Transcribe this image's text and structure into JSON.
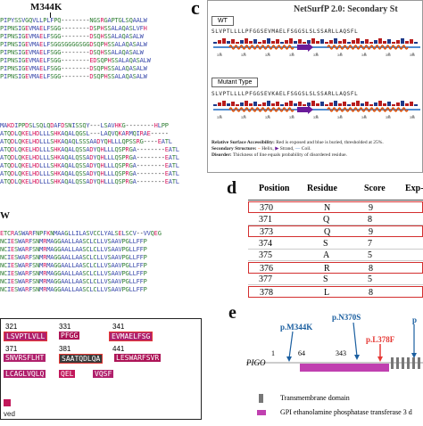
{
  "panel_labels": {
    "c": "c",
    "d": "d",
    "e": "e"
  },
  "panel_a": {
    "mutation_label": "M344K",
    "rows": [
      "PIPYSSVGQVLLPLFPQ--------NGSRGAPTGLSQAALW",
      "PIPNSIGEVMAELFSGG--------DSPHSSALAQASLVFH",
      "PIPNSIGEVMAELFSGG--------DSQHSSALAQASALW",
      "PIPNSIGEVMAELFSGGSGGGGSGGDSQPHSSALAQASALW",
      "PIPNSIGEVMAELFSGG--------DSQHSSALAQASALW",
      "PIPNSIGEVMAELFSGG--------EDSQPHSSALAQASALW",
      "PIPNSIGEVMAELFSGG--------DSQPHSSALAQASALW",
      "PIPNSIGEVMAELFSGG--------DSQPHSSALAQASALW"
    ]
  },
  "panel_b": {
    "rows": [
      "MAKDIPPDSLSQLQDAFDSNISSQY---LSAVHKG--------HLPP",
      "ATQDLQKELHDLLLSHKAQALQGSL---LAQVQKARMQIRAE-----",
      "ATQDLQKELHDLLLSHKAQAQLSSSAADYQHLLLQPSSRG----EATL",
      "ATQDLQKELHDLLLSHKAQALQSSADYQHLLLQSPRGA--------EATL",
      "ATQDLQKELHDLLLSHKAQALQSSADYQHLLLQSPRGA--------EATL",
      "ATQDLQKELHDLLLSHKAQALQSSADYQHLLLQSPRGA--------EATL",
      "ATQDLQKELHDLLLSHKAQALQSSADYQHLLLQSPRGA--------EATL",
      "ATQDLQKELHDLLLSHKAQALQSSADYQHLLLQSPRGA--------EATL"
    ]
  },
  "panel_w": {
    "mutation_label": "W",
    "rows": [
      "ETCRASWARFNPFKNMAAGLLILASVCCLYALSELSCV--VVQEG",
      "NCIESWARFSNMRMAGGAALLAASCLCLLVSAAVPGLLFFP",
      "NCIESWARFSNMRMAGGAALLAASCLCLLVSAAVPGLLFFP",
      "NCIESWARFSNMRMAGGAALLAASCLCLLVSAAVPGLLFFP",
      "NCIESWARFSNMRMAGGAALLAASCLCLLVSAAVPGLLFFP",
      "NCIESWARFSNMRMAGGAALLAASCLCLLVSAAVPGLLFFP",
      "NCIESWARFSNMRMAGGAALLAASCLCLLVSAAVPGLLFFP",
      "NCIESWARFSNMRMAGGAALLAASCLCLLVSAAVPGLLFFP"
    ]
  },
  "panel_f": {
    "numbers_top": [
      "321",
      "331",
      "341"
    ],
    "row1": [
      "LSVPTLVLL",
      "PFGG",
      "EVMAELFSG"
    ],
    "numbers_mid": [
      "371",
      "381",
      "441"
    ],
    "row2": [
      "SNVRSFLHT",
      "SAATQDLQA",
      "LESWARFSVR"
    ],
    "row3": [
      "LCAGLVQLQ",
      "QEL",
      "VQSF"
    ],
    "footer": "ved"
  },
  "panel_c": {
    "label": "c",
    "title": "NetSurfP 2.0: Secondary St",
    "wt_label": "WT",
    "mut_label": "Mutant Type",
    "seq_wt": "SLVPTLLLLPFGGSEVMAELFSGGSLSLSSARLLAQSFL",
    "seq_mut": "SLVPTLLLLPFGGSEVKAELFSGGSLSLSSARLLAQSFL",
    "ticks": [
      "315",
      "320",
      "325",
      "330",
      "335",
      "340",
      "345",
      "350",
      "355"
    ],
    "legend": {
      "rsa_label": "Relative Surface Accessibility:",
      "rsa_text": "Red is exposed and blue is buried, thresholded at 25%.",
      "ss_label": "Secondary Structure:",
      "ss_helix": "Helix,",
      "ss_strand": "Strand,",
      "ss_coil": "Coil.",
      "dis_label": "Disorder:",
      "dis_text": "Thickness of line equals probability of disordered residue."
    }
  },
  "panel_d": {
    "label": "d",
    "headers": [
      "Position",
      "Residue",
      "Score",
      "Exp-"
    ],
    "rows": [
      {
        "pos": "370",
        "res": "N",
        "score": "9",
        "boxed": true
      },
      {
        "pos": "371",
        "res": "Q",
        "score": "8",
        "boxed": false
      },
      {
        "pos": "373",
        "res": "Q",
        "score": "9",
        "boxed": true
      },
      {
        "pos": "374",
        "res": "S",
        "score": "7",
        "boxed": false
      },
      {
        "pos": "375",
        "res": "A",
        "score": "5",
        "boxed": false
      },
      {
        "pos": "376",
        "res": "R",
        "score": "8",
        "boxed": true
      },
      {
        "pos": "377",
        "res": "S",
        "score": "5",
        "boxed": false
      },
      {
        "pos": "378",
        "res": "L",
        "score": "8",
        "boxed": true
      }
    ]
  },
  "panel_e": {
    "label": "e",
    "p1": "p.M344K",
    "p2": "p.N370S",
    "p3": "p.L378F",
    "p4": "p",
    "gene": "PIGO",
    "n1": "1",
    "n64": "64",
    "n343": "343",
    "legend1": "Transmembrane domain",
    "legend2": "GPI ethanolamine phosphatase transferase 3 d",
    "colors": {
      "tm": "#777777",
      "gpi": "#c040b0",
      "mut": "#1b5fa0",
      "red": "#e53935"
    }
  }
}
